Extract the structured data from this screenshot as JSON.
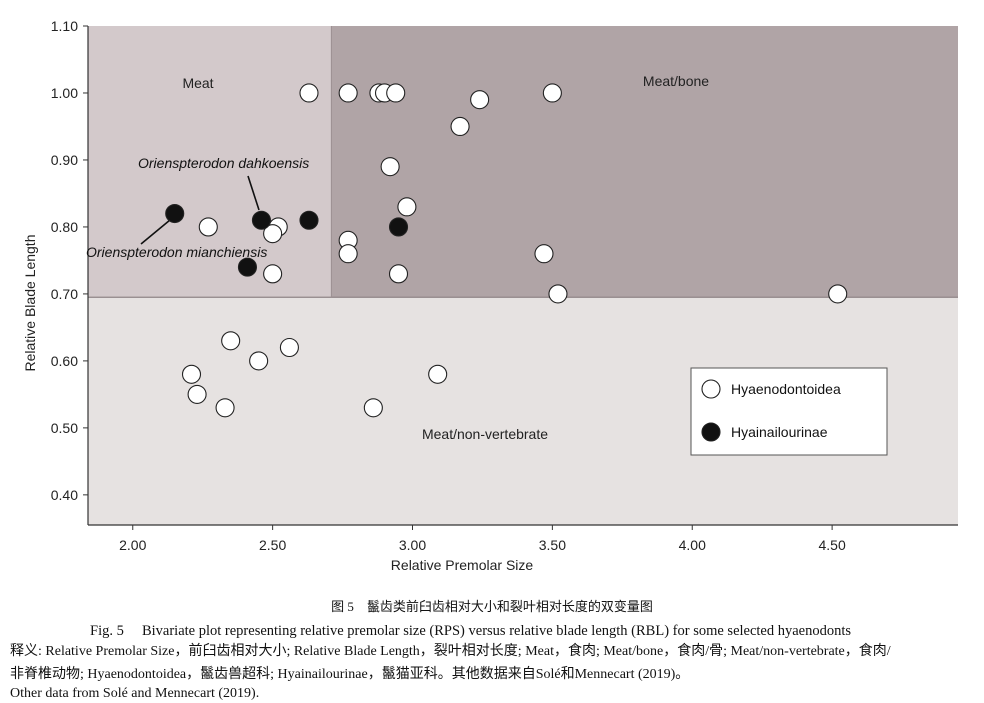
{
  "chart_data": {
    "type": "scatter",
    "xlabel": "Relative Premolar Size",
    "ylabel": "Relative Blade Length",
    "xlim": [
      1.84,
      4.95
    ],
    "ylim": [
      0.355,
      1.1
    ],
    "x_ticks": [
      "2.00",
      "2.50",
      "3.00",
      "3.50",
      "4.00",
      "4.50"
    ],
    "x_tick_values": [
      2.0,
      2.5,
      3.0,
      3.5,
      4.0,
      4.5
    ],
    "y_ticks": [
      "0.40",
      "0.50",
      "0.60",
      "0.70",
      "0.80",
      "0.90",
      "1.00",
      "1.10"
    ],
    "y_tick_values": [
      0.4,
      0.5,
      0.6,
      0.7,
      0.8,
      0.9,
      1.0,
      1.1
    ],
    "grid": false,
    "regions": [
      {
        "label": "Meat",
        "x_range": [
          1.84,
          2.71
        ],
        "y_range": [
          0.695,
          1.1
        ],
        "color": "#d3c9cb"
      },
      {
        "label": "Meat/bone",
        "x_range": [
          2.71,
          4.95
        ],
        "y_range": [
          0.695,
          1.1
        ],
        "color": "#b0a4a6"
      },
      {
        "label": "Meat/non-vertebrate",
        "x_range": [
          1.84,
          4.95
        ],
        "y_range": [
          0.355,
          0.695
        ],
        "color": "#e6e2e1"
      }
    ],
    "series": [
      {
        "name": "Hyaenodontoidea",
        "marker": "open-circle",
        "points": [
          {
            "x": 2.63,
            "y": 1.0
          },
          {
            "x": 2.77,
            "y": 1.0
          },
          {
            "x": 2.88,
            "y": 1.0
          },
          {
            "x": 2.9,
            "y": 1.0
          },
          {
            "x": 2.94,
            "y": 1.0
          },
          {
            "x": 3.24,
            "y": 0.99
          },
          {
            "x": 3.5,
            "y": 1.0
          },
          {
            "x": 3.17,
            "y": 0.95
          },
          {
            "x": 2.92,
            "y": 0.89
          },
          {
            "x": 2.98,
            "y": 0.83
          },
          {
            "x": 2.27,
            "y": 0.8
          },
          {
            "x": 2.52,
            "y": 0.8
          },
          {
            "x": 2.5,
            "y": 0.79
          },
          {
            "x": 2.77,
            "y": 0.78
          },
          {
            "x": 2.77,
            "y": 0.76
          },
          {
            "x": 3.47,
            "y": 0.76
          },
          {
            "x": 2.5,
            "y": 0.73
          },
          {
            "x": 2.95,
            "y": 0.73
          },
          {
            "x": 3.52,
            "y": 0.7
          },
          {
            "x": 4.52,
            "y": 0.7
          },
          {
            "x": 2.35,
            "y": 0.63
          },
          {
            "x": 2.56,
            "y": 0.62
          },
          {
            "x": 2.45,
            "y": 0.6
          },
          {
            "x": 2.21,
            "y": 0.58
          },
          {
            "x": 3.09,
            "y": 0.58
          },
          {
            "x": 2.23,
            "y": 0.55
          },
          {
            "x": 2.33,
            "y": 0.53
          },
          {
            "x": 2.86,
            "y": 0.53
          }
        ]
      },
      {
        "name": "Hyainailourinae",
        "marker": "filled-circle",
        "points": [
          {
            "x": 2.15,
            "y": 0.82
          },
          {
            "x": 2.46,
            "y": 0.81
          },
          {
            "x": 2.63,
            "y": 0.81
          },
          {
            "x": 2.95,
            "y": 0.8
          },
          {
            "x": 2.41,
            "y": 0.74
          }
        ]
      }
    ],
    "annotations": [
      {
        "text": "Oriensp­terodon dahkoensis",
        "points_to": {
          "x": 2.46,
          "y": 0.81
        }
      },
      {
        "text": "Oriensp­terodon mianchiensis",
        "points_to": {
          "x": 2.15,
          "y": 0.82
        }
      }
    ],
    "legend": {
      "position": "lower-right",
      "entries": [
        {
          "label": "Hyaenodontoidea",
          "marker": "open-circle"
        },
        {
          "label": "Hyainailourinae",
          "marker": "filled-circle"
        }
      ]
    }
  },
  "captions": {
    "cn_title": "图 5　鬣齿类前臼齿相对大小和裂叶相对长度的双变量图",
    "en_title": "Fig. 5　 Bivariate plot representing relative premolar size (RPS) versus relative blade length (RBL) for some selected hyaenodonts",
    "gloss_line1": "释义: Relative Premolar Size，前臼齿相对大小; Relative Blade Length，裂叶相对长度; Meat，食肉; Meat/bone，食肉/骨; Meat/non-vertebrate，食肉/",
    "gloss_line2": "非脊椎动物; Hyaenodontoidea，鬣齿兽超科; Hyainailourinae，鬣猫亚科。其他数据来自Solé和Mennecart (2019)。",
    "other_data": "Other data from Solé and Mennecart (2019)."
  }
}
